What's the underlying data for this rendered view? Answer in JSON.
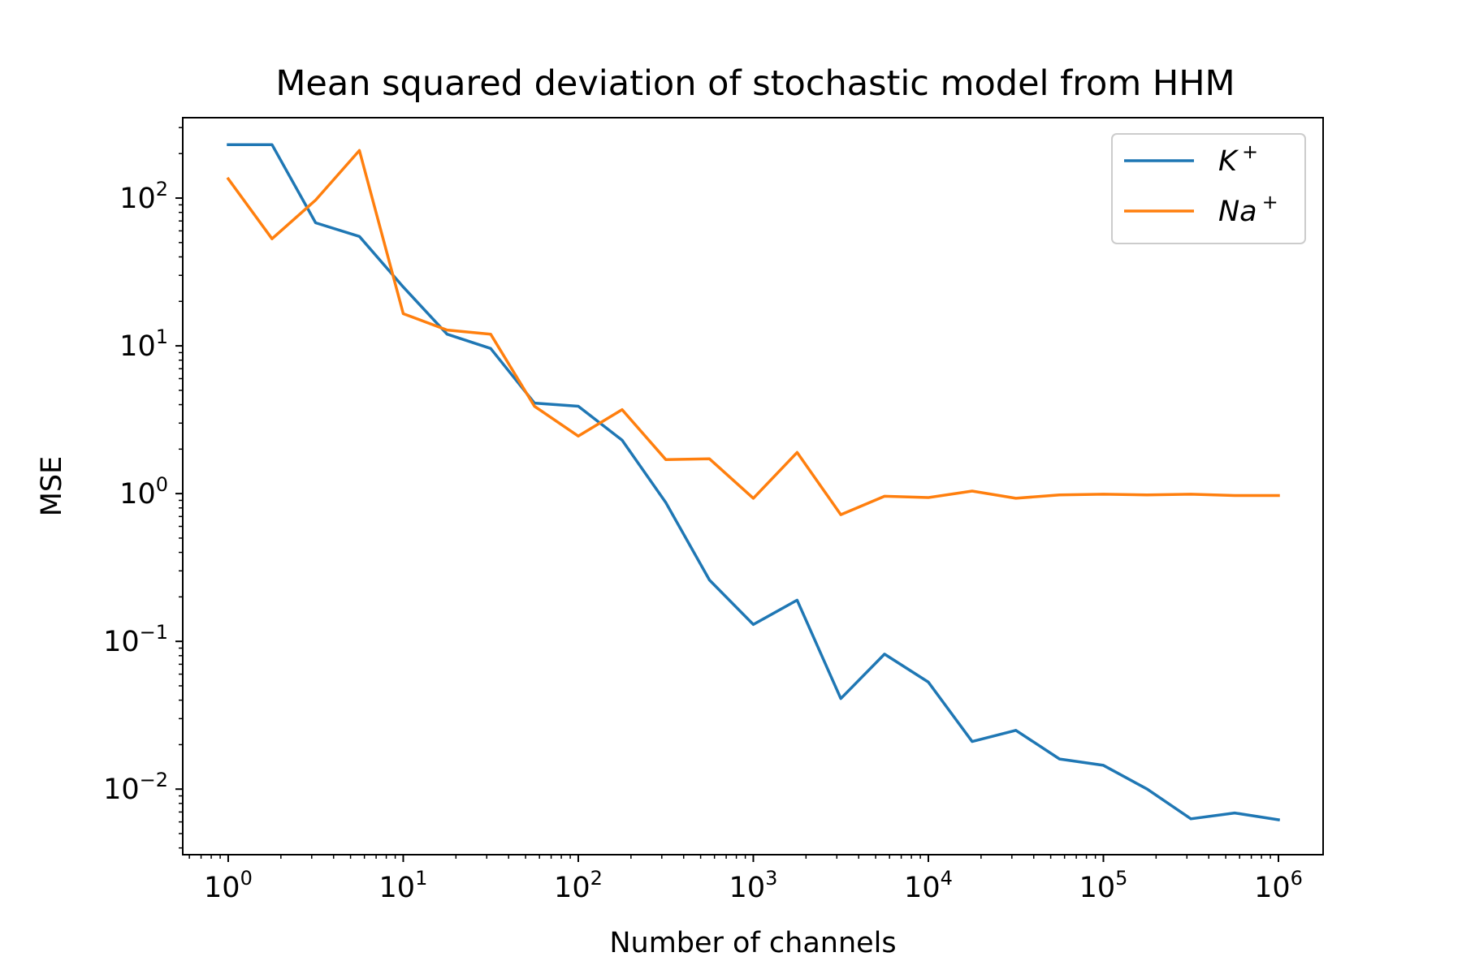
{
  "chart_data": {
    "type": "line",
    "title": "Mean squared deviation of stochastic model from HHM",
    "xlabel": "Number of channels",
    "ylabel": "MSE",
    "xscale": "log",
    "yscale": "log",
    "xlim": [
      0.55,
      1800000
    ],
    "ylim": [
      0.0036,
      350
    ],
    "grid": false,
    "legend_position": "top-right",
    "x_tick_labels": [
      {
        "value": 1,
        "base": "10",
        "exp": "0"
      },
      {
        "value": 10,
        "base": "10",
        "exp": "1"
      },
      {
        "value": 100,
        "base": "10",
        "exp": "2"
      },
      {
        "value": 1000,
        "base": "10",
        "exp": "3"
      },
      {
        "value": 10000,
        "base": "10",
        "exp": "4"
      },
      {
        "value": 100000,
        "base": "10",
        "exp": "5"
      },
      {
        "value": 1000000,
        "base": "10",
        "exp": "6"
      }
    ],
    "y_tick_labels": [
      {
        "value": 0.01,
        "base": "10",
        "exp": "−2"
      },
      {
        "value": 0.1,
        "base": "10",
        "exp": "−1"
      },
      {
        "value": 1,
        "base": "10",
        "exp": "0"
      },
      {
        "value": 10,
        "base": "10",
        "exp": "1"
      },
      {
        "value": 100,
        "base": "10",
        "exp": "2"
      }
    ],
    "x": [
      1,
      1.78,
      3.16,
      5.62,
      10,
      17.8,
      31.6,
      56.2,
      100,
      178,
      316,
      562,
      1000,
      1780,
      3160,
      5620,
      10000,
      17800,
      31600,
      56200,
      100000,
      178000,
      316000,
      562000,
      1000000
    ],
    "series": [
      {
        "name": "K",
        "name_sup": "+",
        "color": "#1f77b4",
        "values": [
          230,
          230,
          68,
          55,
          25,
          12,
          9.6,
          4.1,
          3.9,
          2.3,
          0.87,
          0.26,
          0.13,
          0.19,
          0.041,
          0.082,
          0.053,
          0.021,
          0.025,
          0.016,
          0.0145,
          0.01,
          0.0063,
          0.0069,
          0.0062
        ]
      },
      {
        "name": "Na",
        "name_sup": "+",
        "color": "#ff7f0e",
        "values": [
          135,
          53,
          97,
          210,
          16.5,
          12.8,
          12,
          3.9,
          2.45,
          3.7,
          1.7,
          1.72,
          0.93,
          1.9,
          0.72,
          0.96,
          0.94,
          1.04,
          0.93,
          0.98,
          0.99,
          0.98,
          0.99,
          0.97,
          0.97
        ]
      }
    ]
  }
}
